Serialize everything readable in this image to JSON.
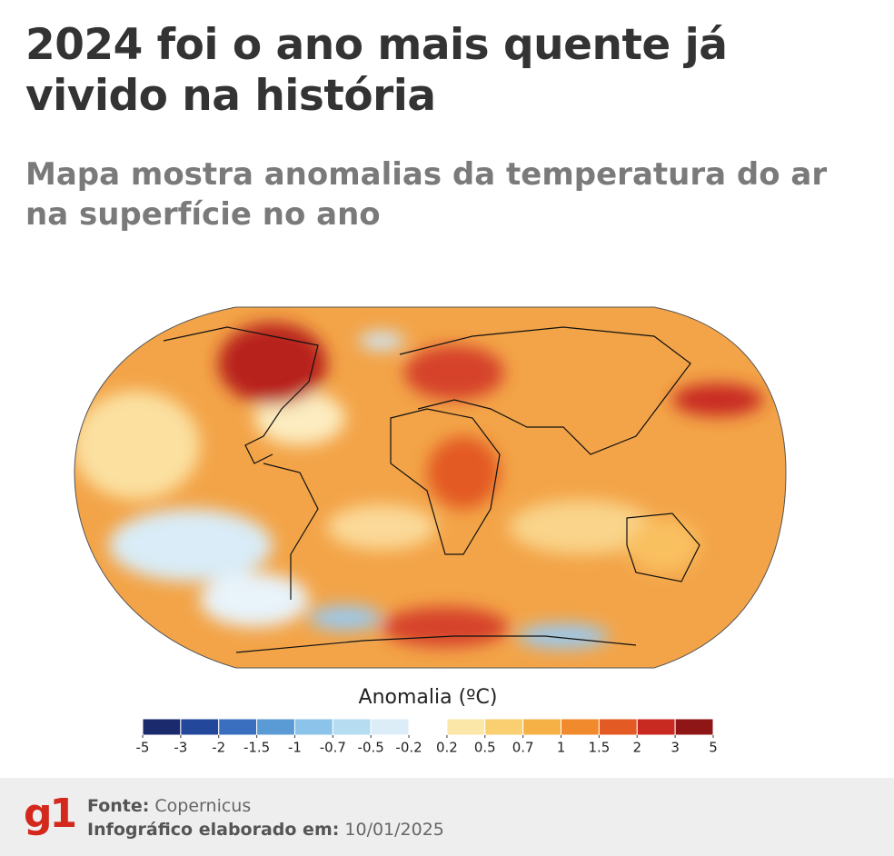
{
  "header": {
    "title": "2024 foi o ano mais quente já vivido na história",
    "subtitle": "Mapa mostra anomalias da temperatura do ar na superfície no ano"
  },
  "legend": {
    "title": "Anomalia (ºC)",
    "ticks": [
      -5,
      -3,
      -2,
      -1.5,
      -1,
      -0.7,
      -0.5,
      -0.2,
      0.2,
      0.5,
      0.7,
      1,
      1.5,
      2,
      3,
      5
    ],
    "colors": [
      "#1a2a6c",
      "#23479b",
      "#3a6fbf",
      "#5b9bd5",
      "#8cc3ea",
      "#b6dcf2",
      "#dcedf8",
      "#ffffff",
      "#fbe7a8",
      "#f9cf72",
      "#f6b146",
      "#f08a2c",
      "#e35a24",
      "#c82a22",
      "#8e1616"
    ]
  },
  "footer": {
    "source_label": "Fonte:",
    "source": "Copernicus",
    "date_label": "Infográfico elaborado em:",
    "date": "10/01/2025",
    "logo": "g1"
  }
}
